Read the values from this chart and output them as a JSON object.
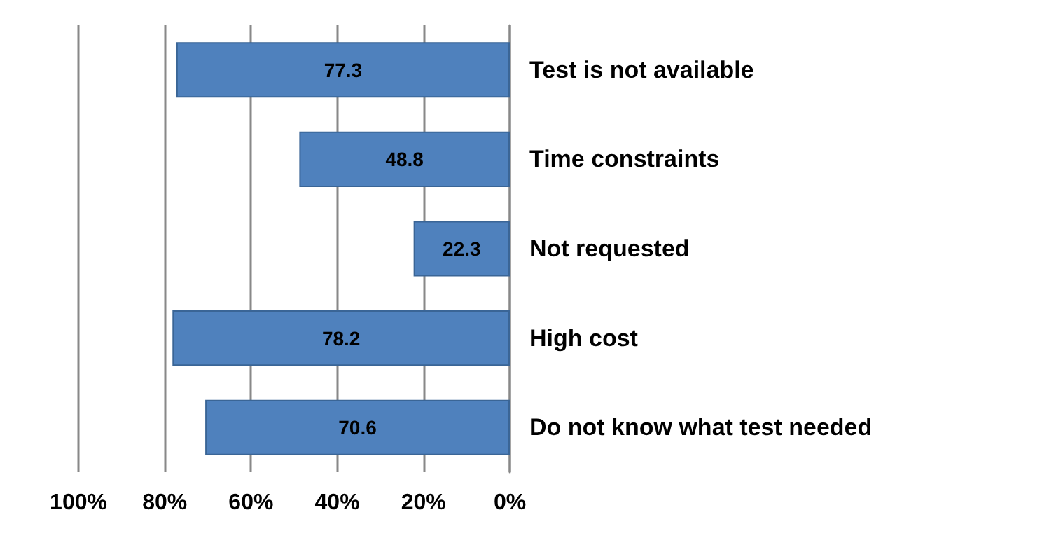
{
  "chart_data": {
    "type": "bar",
    "orientation": "horizontal",
    "categories": [
      "Test is not available",
      "Time constraints",
      "Not requested",
      "High cost",
      "Do not know what test needed"
    ],
    "values": [
      77.3,
      48.8,
      22.3,
      78.2,
      70.6
    ],
    "color": "#4f81bd",
    "xlim": [
      100,
      0
    ],
    "xticks": [
      {
        "value": 100,
        "label": "100%"
      },
      {
        "value": 80,
        "label": "80%"
      },
      {
        "value": 60,
        "label": "60%"
      },
      {
        "value": 40,
        "label": "40%"
      },
      {
        "value": 20,
        "label": "20%"
      },
      {
        "value": 0,
        "label": "0%"
      }
    ],
    "grid": "x",
    "data_labels": true
  }
}
